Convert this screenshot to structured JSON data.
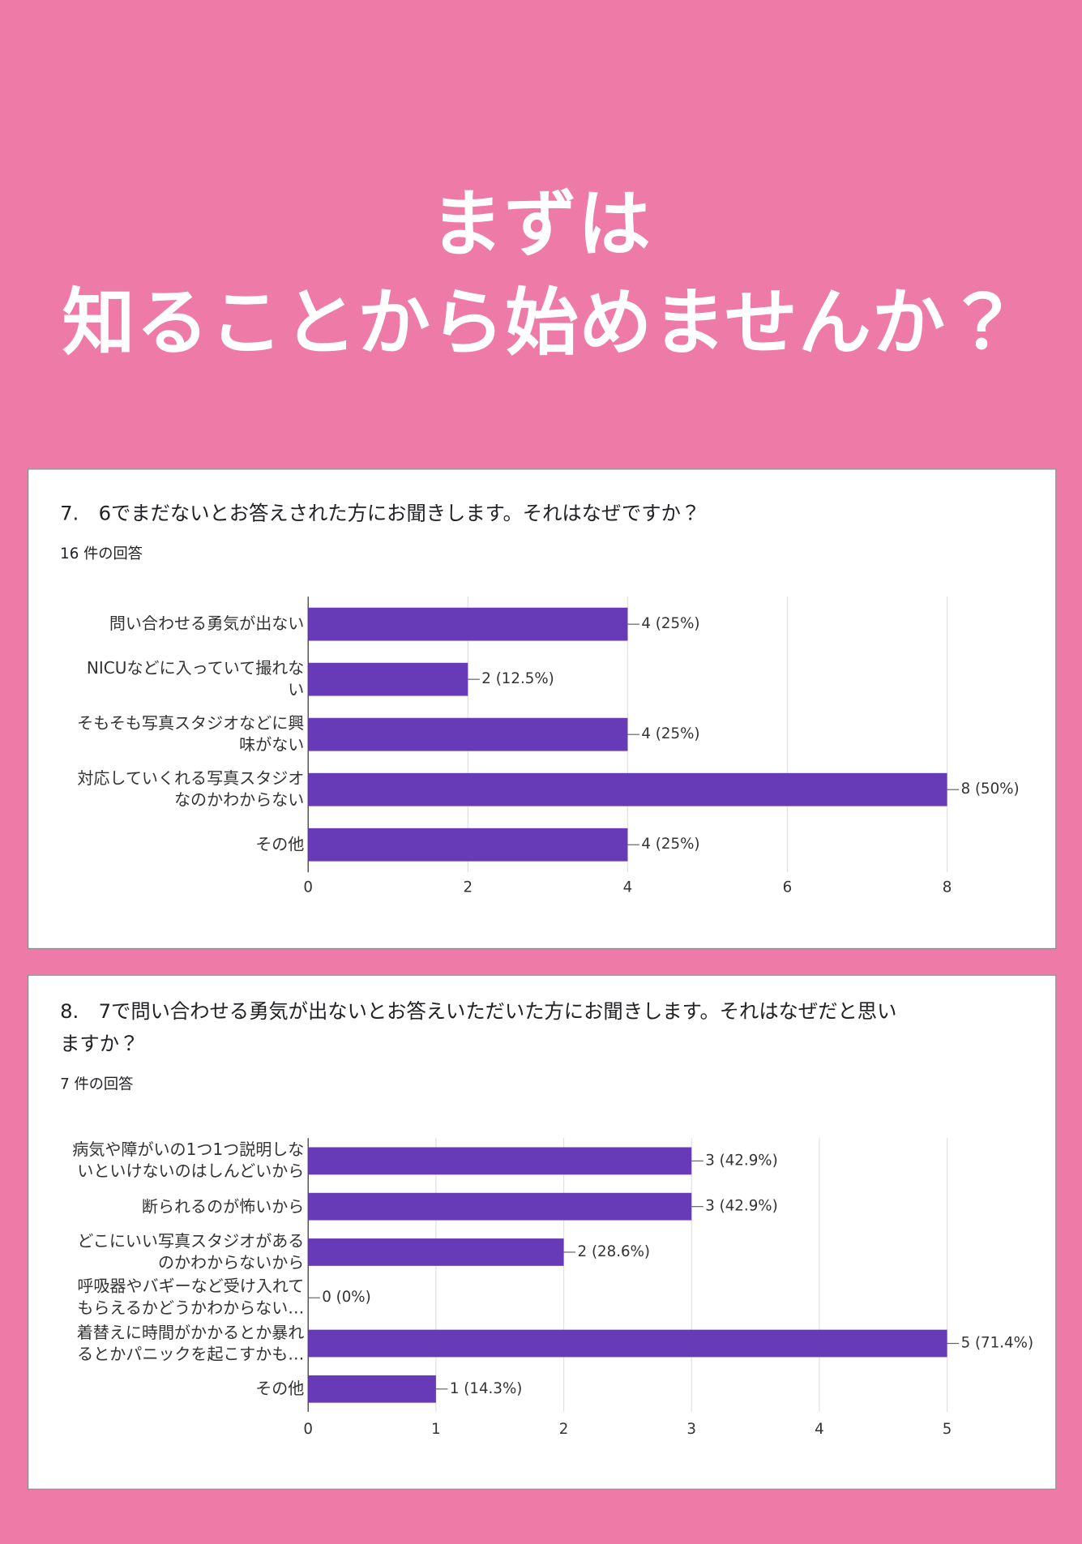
{
  "header": {
    "line1": "まずは",
    "line2": "知ることから始めませんか？"
  },
  "chart_data": [
    {
      "type": "bar",
      "orientation": "horizontal",
      "title": "7.　6でまだないとお答えされた方にお聞きします。それはなぜですか？",
      "subtitle": "16 件の回答",
      "categories": [
        "問い合わせる勇気が出ない",
        "NICUなどに入っていて撮れない",
        "そもそも写真スタジオなどに興味がない",
        "対応していくれる写真スタジオなのかわからない",
        "その他"
      ],
      "values": [
        4,
        2,
        4,
        8,
        4
      ],
      "value_labels": [
        "4 (25%)",
        "2 (12.5%)",
        "4 (25%)",
        "8 (50%)",
        "4 (25%)"
      ],
      "color": "#673ab7",
      "xlim": [
        0,
        8
      ],
      "xticks": [
        0,
        2,
        4,
        6,
        8
      ],
      "grid": true
    },
    {
      "type": "bar",
      "orientation": "horizontal",
      "title": "8.　7で問い合わせる勇気が出ないとお答えいただいた方にお聞きします。それはなぜだと思いますか？",
      "subtitle": "7 件の回答",
      "categories": [
        "病気や障がいの1つ1つ説明しないといけないのはしんどいから",
        "断られるのが怖いから",
        "どこにいい写真スタジオがあるのかわからないから",
        "呼吸器やバギーなど受け入れてもらえるかどうかわからない…",
        "着替えに時間がかかるとか暴れるとかパニックを起こすかも…",
        "その他"
      ],
      "values": [
        3,
        3,
        2,
        0,
        5,
        1
      ],
      "value_labels": [
        "3 (42.9%)",
        "3 (42.9%)",
        "2 (28.6%)",
        "0 (0%)",
        "5 (71.4%)",
        "1 (14.3%)"
      ],
      "color": "#673ab7",
      "xlim": [
        0,
        5
      ],
      "xticks": [
        0,
        1,
        2,
        3,
        4,
        5
      ],
      "grid": true
    }
  ]
}
